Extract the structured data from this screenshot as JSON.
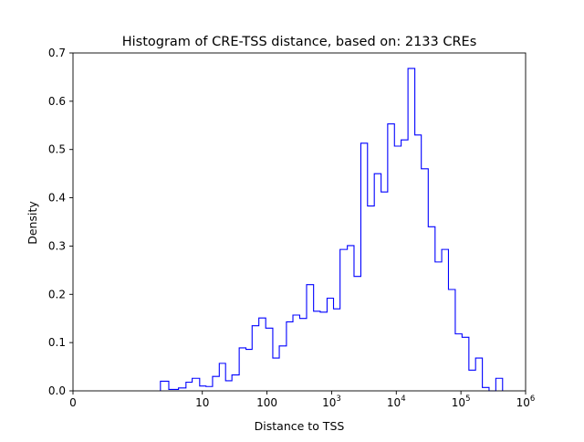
{
  "chart_data": {
    "type": "histogram",
    "title": "Histogram of CRE-TSS distance, based on: 2133 CREs",
    "xlabel": "Distance to TSS",
    "ylabel": "Density",
    "xscale": "symlog",
    "xlim": [
      0,
      1000000
    ],
    "ylim": [
      0,
      0.7
    ],
    "grid": false,
    "line_color": "#0000ff",
    "x_ticks": [
      {
        "value": 0,
        "label": "0"
      },
      {
        "value": 10,
        "label": "10"
      },
      {
        "value": 100,
        "label": "100"
      },
      {
        "value": 1000,
        "label": "10",
        "exponent": "3"
      },
      {
        "value": 10000,
        "label": "10",
        "exponent": "4"
      },
      {
        "value": 100000,
        "label": "10",
        "exponent": "5"
      },
      {
        "value": 1000000,
        "label": "10",
        "exponent": "6"
      }
    ],
    "y_ticks": [
      {
        "value": 0.0,
        "label": "0.0"
      },
      {
        "value": 0.1,
        "label": "0.1"
      },
      {
        "value": 0.2,
        "label": "0.2"
      },
      {
        "value": 0.3,
        "label": "0.3"
      },
      {
        "value": 0.4,
        "label": "0.4"
      },
      {
        "value": 0.5,
        "label": "0.5"
      },
      {
        "value": 0.6,
        "label": "0.6"
      },
      {
        "value": 0.7,
        "label": "0.7"
      }
    ],
    "bin_edges": [
      2.25,
      3.03,
      4.28,
      5.59,
      6.97,
      9.1,
      11.4,
      14.4,
      18.3,
      22.9,
      28.7,
      37.2,
      47.3,
      58.9,
      74.9,
      95.6,
      123,
      155,
      200,
      252,
      321,
      410,
      526,
      666,
      850,
      1070,
      1350,
      1750,
      2220,
      2830,
      3590,
      4570,
      5820,
      7360,
      9370,
      11890,
      15170,
      19350,
      24360,
      31200,
      39800,
      50400,
      64100,
      81700,
      104000,
      132700,
      168400,
      214400,
      272100,
      346200
    ],
    "densities": [
      0.02,
      0.003,
      0.006,
      0.018,
      0.026,
      0.01,
      0.009,
      0.03,
      0.057,
      0.021,
      0.033,
      0.089,
      0.086,
      0.135,
      0.151,
      0.13,
      0.068,
      0.093,
      0.143,
      0.157,
      0.15,
      0.22,
      0.165,
      0.163,
      0.192,
      0.17,
      0.293,
      0.301,
      0.237,
      0.513,
      0.383,
      0.45,
      0.412,
      0.553,
      0.507,
      0.52,
      0.668,
      0.53,
      0.46,
      0.34,
      0.267,
      0.293,
      0.21,
      0.118,
      0.111,
      0.043,
      0.068,
      0.007,
      0.0,
      0.026
    ]
  }
}
